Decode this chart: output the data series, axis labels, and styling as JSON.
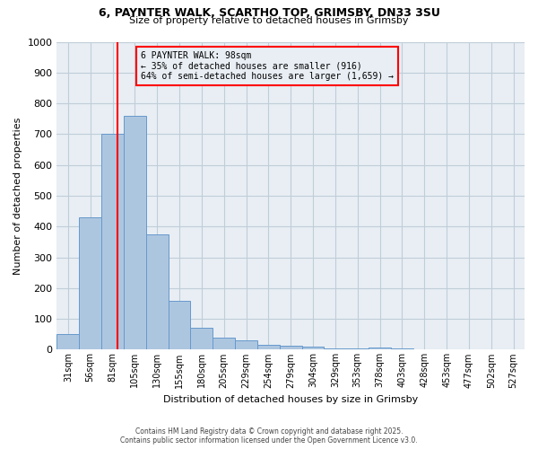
{
  "title_line1": "6, PAYNTER WALK, SCARTHO TOP, GRIMSBY, DN33 3SU",
  "title_line2": "Size of property relative to detached houses in Grimsby",
  "xlabel": "Distribution of detached houses by size in Grimsby",
  "ylabel": "Number of detached properties",
  "bar_labels": [
    "31sqm",
    "56sqm",
    "81sqm",
    "105sqm",
    "130sqm",
    "155sqm",
    "180sqm",
    "205sqm",
    "229sqm",
    "254sqm",
    "279sqm",
    "304sqm",
    "329sqm",
    "353sqm",
    "378sqm",
    "403sqm",
    "428sqm",
    "453sqm",
    "477sqm",
    "502sqm",
    "527sqm"
  ],
  "bar_values": [
    50,
    430,
    700,
    760,
    375,
    160,
    72,
    40,
    30,
    17,
    12,
    10,
    5,
    3,
    8,
    5,
    0,
    0,
    0,
    0,
    0
  ],
  "bar_color": "#adc6e0",
  "bar_edge_color": "#6699cc",
  "vline_color": "red",
  "annotation_title": "6 PAYNTER WALK: 98sqm",
  "annotation_line2": "← 35% of detached houses are smaller (916)",
  "annotation_line3": "64% of semi-detached houses are larger (1,659) →",
  "annotation_box_color": "red",
  "ylim": [
    0,
    1000
  ],
  "yticks": [
    0,
    100,
    200,
    300,
    400,
    500,
    600,
    700,
    800,
    900,
    1000
  ],
  "footnote1": "Contains HM Land Registry data © Crown copyright and database right 2025.",
  "footnote2": "Contains public sector information licensed under the Open Government Licence v3.0.",
  "bg_color": "#e8eef4",
  "grid_color": "#c0cdd8",
  "fig_bg_color": "#ffffff"
}
